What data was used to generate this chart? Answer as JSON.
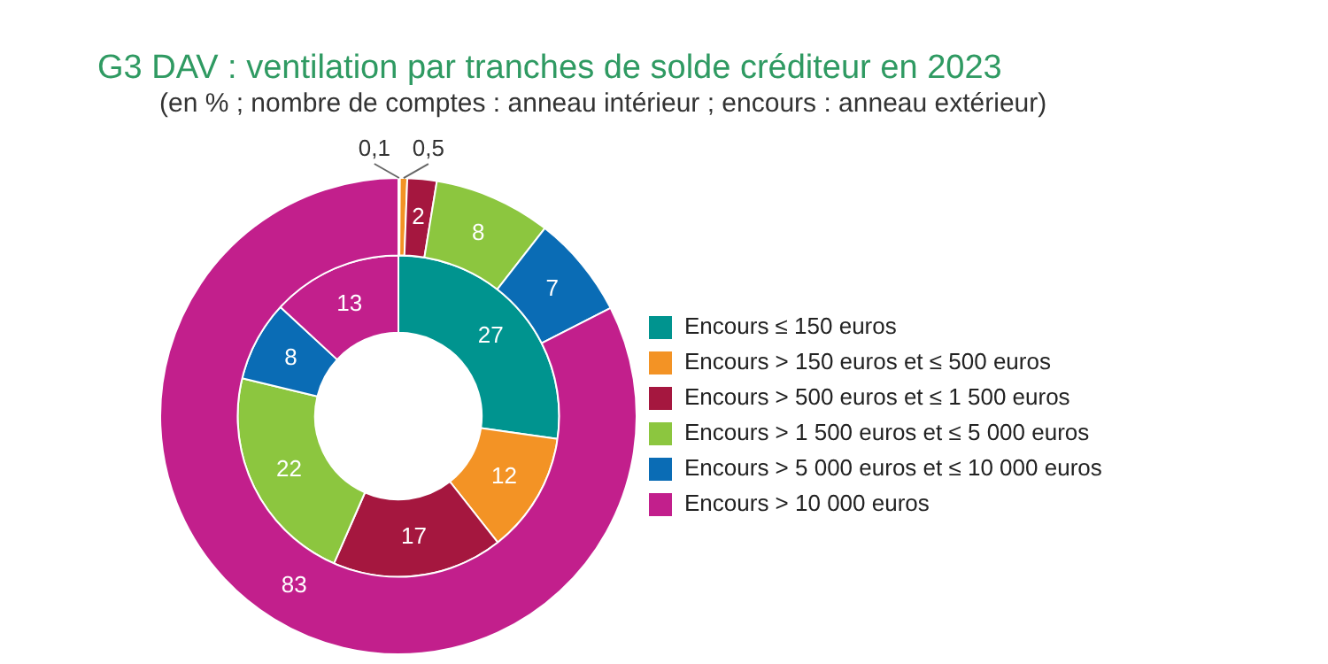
{
  "chart_data": {
    "type": "donut",
    "title": "G3 DAV : ventilation par tranches de solde créditeur en 2023",
    "subtitle": "(en % ; nombre de comptes : anneau intérieur ; encours : anneau extérieur)",
    "categories": [
      "Encours ≤ 150 euros",
      "Encours > 150 euros et ≤ 500 euros",
      "Encours > 500 euros et ≤ 1 500 euros",
      "Encours > 1 500 euros et ≤ 5 000 euros",
      "Encours > 5 000 euros et ≤ 10 000 euros",
      "Encours > 10 000 euros"
    ],
    "colors": [
      "#00948f",
      "#f39325",
      "#a5173f",
      "#8cc63f",
      "#0a6cb5",
      "#c21f8c"
    ],
    "series": [
      {
        "values": [
          0.1,
          0.5,
          2,
          8,
          7,
          83
        ],
        "value_labels": [
          "0,1",
          "0,5",
          "2",
          "8",
          "7",
          "83"
        ]
      },
      {
        "values": [
          27,
          12,
          17,
          22,
          8,
          13
        ],
        "value_labels": [
          "27",
          "12",
          "17",
          "22",
          "8",
          "13"
        ]
      }
    ],
    "legend": "right"
  }
}
